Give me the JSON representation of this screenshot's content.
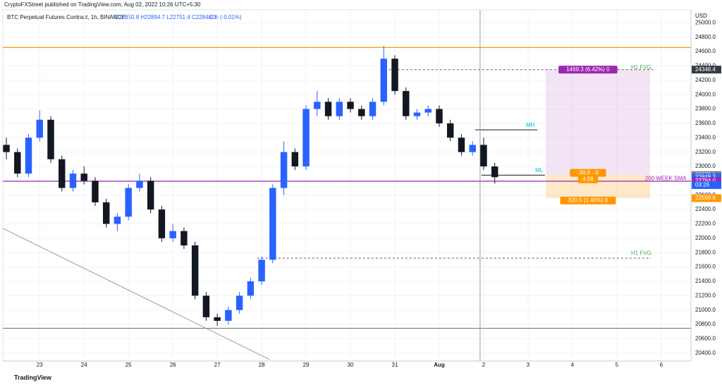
{
  "header": {
    "published": "CryptoFXStreet published on TradingView.com, Aug 02, 2022 10:26 UTC+5:30",
    "symbol": "BTC Perpetual Futures Contract, 1h, BINANCE",
    "ohlc": "O22850.8 H22894.7 L22751.4 C22848.3",
    "change": "-2.6 (-0.01%)"
  },
  "footer": {
    "brand": "TradingView"
  },
  "chart_data": {
    "type": "candlestick",
    "y_unit": "USD",
    "up_color": "#2962ff",
    "down_color": "#131722",
    "x": [
      22.25,
      22.5,
      22.75,
      23,
      23.25,
      23.5,
      23.75,
      24,
      24.25,
      24.5,
      24.75,
      25,
      25.25,
      25.5,
      25.75,
      26,
      26.25,
      26.5,
      26.75,
      27,
      27.25,
      27.5,
      27.75,
      28,
      28.25,
      28.5,
      28.75,
      29,
      29.25,
      29.5,
      29.75,
      30,
      30.25,
      30.5,
      30.75,
      31,
      31.25,
      31.5,
      31.75,
      32,
      32.25,
      32.5,
      32.75,
      33,
      33.25
    ],
    "open": [
      23300,
      23200,
      22900,
      23400,
      23650,
      23100,
      22700,
      22900,
      22800,
      22500,
      22200,
      22300,
      22700,
      22800,
      22400,
      22000,
      22100,
      21900,
      21200,
      20900,
      20850,
      21000,
      21200,
      21400,
      21700,
      22700,
      23200,
      23000,
      23800,
      23900,
      23700,
      23900,
      23800,
      23700,
      23900,
      24500,
      24050,
      23700,
      23750,
      23800,
      23600,
      23400,
      23200,
      23300,
      23000
    ],
    "high": [
      23400,
      23250,
      23450,
      23780,
      23700,
      23150,
      22950,
      23000,
      22850,
      22550,
      22350,
      22750,
      22900,
      22850,
      22450,
      22200,
      22150,
      21950,
      21250,
      20950,
      21050,
      21250,
      21450,
      21750,
      22750,
      23350,
      23250,
      23850,
      24050,
      23950,
      23950,
      23950,
      23850,
      23950,
      24680,
      24550,
      24100,
      23800,
      23850,
      23850,
      23650,
      23450,
      23350,
      23400,
      23050
    ],
    "low": [
      23100,
      22850,
      22850,
      23350,
      23050,
      22650,
      22650,
      22750,
      22450,
      22150,
      22100,
      22250,
      22650,
      22350,
      21950,
      21950,
      21850,
      21150,
      20850,
      20780,
      20800,
      20950,
      21150,
      21350,
      21650,
      22600,
      22950,
      22950,
      23700,
      23650,
      23650,
      23750,
      23650,
      23650,
      23850,
      24000,
      23650,
      23650,
      23700,
      23550,
      23350,
      23150,
      23150,
      22950,
      22760
    ],
    "close": [
      23200,
      22900,
      23400,
      23650,
      23100,
      22700,
      22900,
      22800,
      22500,
      22200,
      22300,
      22700,
      22800,
      22400,
      22000,
      22100,
      21900,
      21200,
      20900,
      20850,
      21000,
      21200,
      21400,
      21700,
      22700,
      23200,
      23000,
      23800,
      23900,
      23700,
      23900,
      23800,
      23700,
      23900,
      24500,
      24050,
      23700,
      23750,
      23800,
      23600,
      23400,
      23200,
      23300,
      23000,
      22850
    ],
    "xlim": [
      22.17,
      37.67
    ],
    "ylim": [
      20290,
      25180
    ],
    "xticks": [
      23,
      24,
      25,
      26,
      27,
      28,
      29,
      30,
      31,
      {
        "value": 32,
        "label": "Aug"
      },
      {
        "value": 33,
        "label": "2"
      },
      {
        "value": 34,
        "label": "3"
      },
      {
        "value": 35,
        "label": "4"
      },
      {
        "value": 36,
        "label": "5"
      },
      {
        "value": 37,
        "label": "6"
      }
    ],
    "yticks": [
      {
        "value": 20400,
        "label": "20400.0"
      },
      {
        "value": 20600,
        "label": "20600.0"
      },
      {
        "value": 20800,
        "label": "20800.0"
      },
      {
        "value": 21000,
        "label": "21000.0"
      },
      {
        "value": 21200,
        "label": "21200.0"
      },
      {
        "value": 21400,
        "label": "21400.0"
      },
      {
        "value": 21600,
        "label": "21600.0"
      },
      {
        "value": 21800,
        "label": "21800.0"
      },
      {
        "value": 22000,
        "label": "22000.0"
      },
      {
        "value": 22200,
        "label": "22200.0"
      },
      {
        "value": 22400,
        "label": "22400.0"
      },
      {
        "value": 22600,
        "label": "22600.0"
      },
      {
        "value": 22800,
        "label": "22800.0"
      },
      {
        "value": 23000,
        "label": "23000.0"
      },
      {
        "value": 23200,
        "label": "23200.0"
      },
      {
        "value": 23400,
        "label": "23400.0"
      },
      {
        "value": 23600,
        "label": "23600.0"
      },
      {
        "value": 23800,
        "label": "23800.0"
      },
      {
        "value": 24000,
        "label": "24000.0"
      },
      {
        "value": 24200,
        "label": "24200.0"
      },
      {
        "value": 24400,
        "label": "24400.0"
      },
      {
        "value": 24600,
        "label": "24600.0"
      },
      {
        "value": 24800,
        "label": "24800.0"
      },
      {
        "value": 25000,
        "label": "25000.0"
      }
    ],
    "hlines": [
      {
        "price": 24656,
        "color": "#ff9800"
      },
      {
        "price": 20746,
        "color": "#787b86"
      },
      {
        "price": 22794,
        "color": "#9c27b0"
      }
    ],
    "segments": [
      {
        "x": [
          22.17,
          28.18
        ],
        "y": [
          22137,
          20311
        ],
        "color": "#9598a1",
        "dash": false
      },
      {
        "x": [
          30.87,
          36.88
        ],
        "y": [
          24348.4,
          24348.4
        ],
        "color": "#5d606b",
        "dash": true
      },
      {
        "x": [
          27.9,
          36.77
        ],
        "y": [
          21723,
          21723
        ],
        "color": "#5d606b",
        "dash": true
      },
      {
        "x": [
          32.81,
          34.21
        ],
        "y": [
          23509,
          23509
        ],
        "color": "#131722",
        "dash": false
      },
      {
        "x": [
          32.95,
          34.38
        ],
        "y": [
          22878,
          22878
        ],
        "color": "#131722",
        "dash": false
      }
    ],
    "vline": 32.92,
    "boxes": [
      {
        "x": [
          34.4,
          36.75
        ],
        "y": [
          22879.1,
          24348.4
        ],
        "color": "rgba(206,147,216,0.25)"
      },
      {
        "x": [
          34.4,
          36.75
        ],
        "y": [
          22558.6,
          22879.1
        ],
        "color": "rgba(255,183,77,0.3)"
      }
    ],
    "labels": [
      {
        "text": "1469.3 (6.42%) 0",
        "x": 35.35,
        "y": 24348.4,
        "color": "#9c27b0",
        "boxed": true
      },
      {
        "text": "-30.8 - 0",
        "x": 35.35,
        "y": 22910,
        "color": "#ff9800",
        "boxed": true
      },
      {
        "text": "4.58",
        "x": 35.35,
        "y": 22820,
        "color": "#ff9800",
        "boxed": true
      },
      {
        "text": "320.5 (1.40%) 0",
        "x": 35.35,
        "y": 22525,
        "color": "#ff9800",
        "boxed": true
      },
      {
        "text": "H1 FVG",
        "x": 36.55,
        "y": 24375,
        "color": "#4caf50",
        "boxed": false
      },
      {
        "text": "H1 FVG",
        "x": 36.55,
        "y": 21790,
        "color": "#4caf50",
        "boxed": false
      },
      {
        "text": "MH",
        "x": 34.05,
        "y": 23570,
        "color": "#00bcd4",
        "boxed": false
      },
      {
        "text": "ML",
        "x": 34.25,
        "y": 22940,
        "color": "#00bcd4",
        "boxed": false
      },
      {
        "text": "200 WEEK SMA",
        "x": 37.1,
        "y": 22830,
        "color": "#9c27b0",
        "boxed": false
      }
    ],
    "price_tags": [
      {
        "value": 24348.4,
        "color": "#363a45"
      },
      {
        "value": 22879.1,
        "color": "#787b86"
      },
      {
        "value": 22848.3,
        "color": "#2962ff"
      },
      {
        "value": 22794,
        "label": "22794.0",
        "color": "#9c27b0"
      },
      {
        "value": 22558.6,
        "color": "#ff9800"
      }
    ],
    "countdown": "03:26"
  }
}
